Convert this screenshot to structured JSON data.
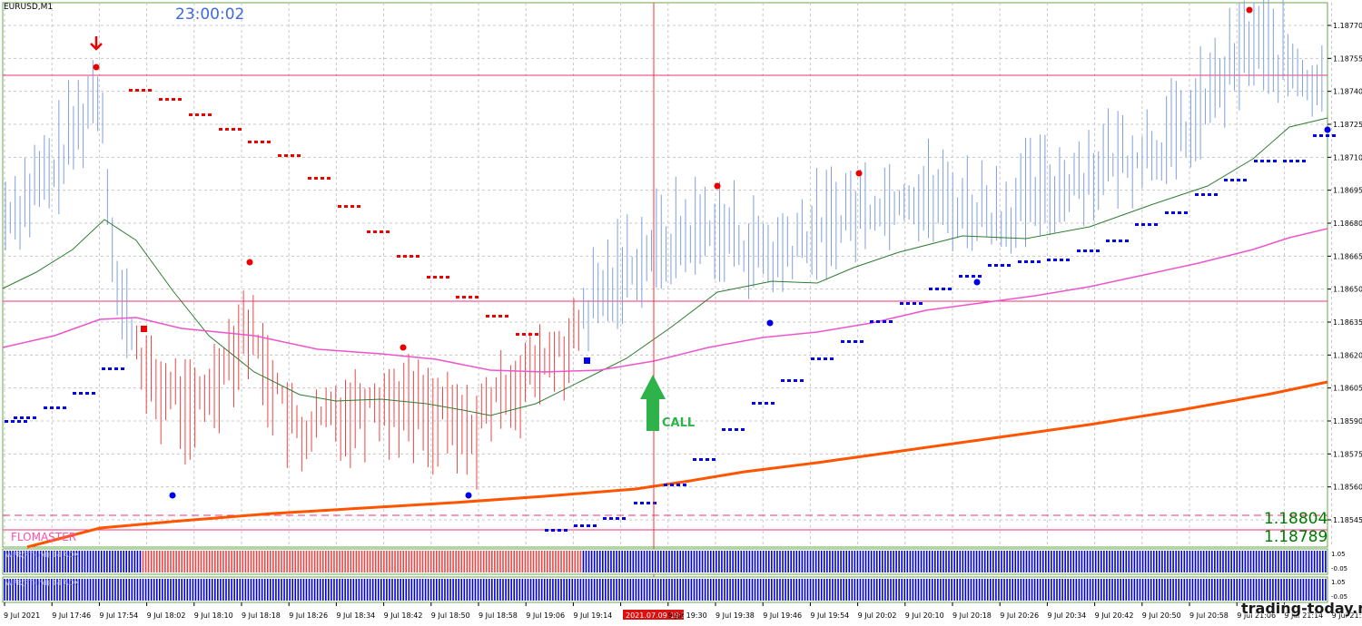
{
  "chart": {
    "symbol": "EURUSD,M1",
    "clock": "23:00:02",
    "signal_label": "CALL",
    "indicator_label": "FLOMASTER",
    "watermark": "trading-today.net",
    "price_level_upper": "1.18804",
    "price_level_lower": "1.18789",
    "indicator_window_1_label": "WPR(PT-Ind) 14 ADX",
    "indicator_window_2_label": "WPR(PT-Ind) 14 ADX",
    "price_ticks": [
      "1.18770",
      "1.18755",
      "1.18740",
      "1.18725",
      "1.18710",
      "1.18695",
      "1.18680",
      "1.18665",
      "1.18650",
      "1.18635",
      "1.18620",
      "1.18605",
      "1.18590",
      "1.18575",
      "1.18560",
      "1.18545"
    ],
    "sub_ticks_1": [
      "1.05",
      "-0.05"
    ],
    "sub_ticks_2": [
      "1.05",
      "-0.05"
    ],
    "time_ticks": [
      "9 Jul 2021",
      "9 Jul 17:46",
      "9 Jul 17:54",
      "9 Jul 18:02",
      "9 Jul 18:10",
      "9 Jul 18:18",
      "9 Jul 18:26",
      "9 Jul 18:34",
      "9 Jul 18:42",
      "9 Jul 18:50",
      "9 Jul 18:58",
      "9 Jul 19:06",
      "9 Jul 19:14",
      "2021.07.09 19:28",
      "9 Jul 19:30",
      "9 Jul 19:38",
      "9 Jul 19:46",
      "9 Jul 19:54",
      "9 Jul 20:02",
      "9 Jul 20:10",
      "9 Jul 20:18",
      "9 Jul 20:26",
      "9 Jul 20:34",
      "9 Jul 20:42",
      "9 Jul 20:50",
      "9 Jul 20:58",
      "9 Jul 21:06",
      "9 Jul 21:14",
      "9 Jul 21:22"
    ],
    "highlighted_time_index": 13,
    "colors": {
      "bull_bar": "#7f9fdf",
      "bear_bar": "#ee4444",
      "ma_fast": "#2e7d32",
      "ma_mid": "#ee55cc",
      "ma_slow": "#ff5500",
      "support_dots": "#0000ee",
      "resistance_dots": "#ee0000",
      "crosshair": "#ff3333",
      "horizontal_level": "#ee3377",
      "call_arrow": "#2db34a",
      "grid": "#c8c8c8",
      "frame": "#6aa84f"
    }
  }
}
